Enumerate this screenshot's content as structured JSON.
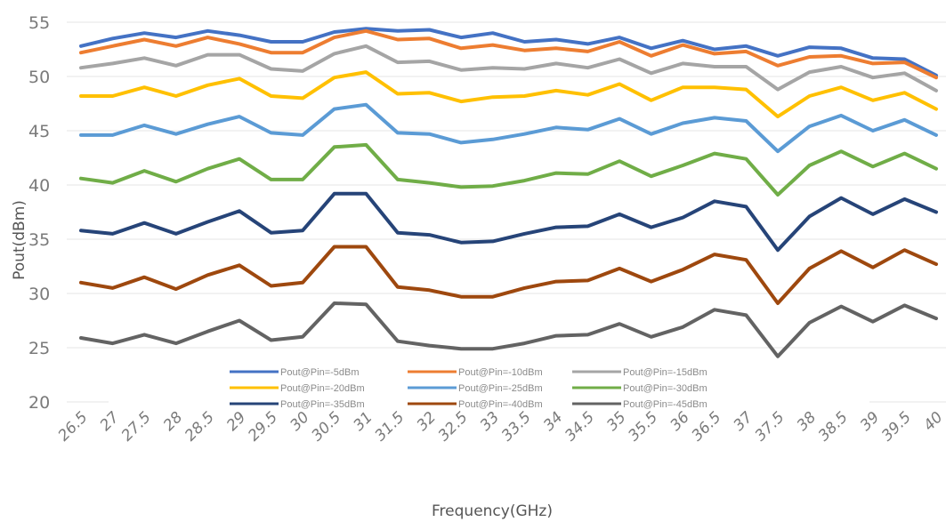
{
  "chart_data": {
    "type": "line",
    "title": "",
    "xlabel": "Frequency(GHz)",
    "ylabel": "Pout(dBm)",
    "ylim": [
      20,
      55
    ],
    "yticks": [
      20,
      25,
      30,
      35,
      40,
      45,
      50,
      55
    ],
    "grid": "horizontal",
    "legend_position": "bottom-center-inside",
    "categories": [
      "26.5",
      "27",
      "27.5",
      "28",
      "28.5",
      "29",
      "29.5",
      "30",
      "30.5",
      "31",
      "31.5",
      "32",
      "32.5",
      "33",
      "33.5",
      "34",
      "34.5",
      "35",
      "35.5",
      "36",
      "36.5",
      "37",
      "37.5",
      "38",
      "38.5",
      "39",
      "39.5",
      "40"
    ],
    "series": [
      {
        "name": "Pout@Pin=-5dBm",
        "color": "#4472c4",
        "values": [
          52.8,
          53.5,
          54.0,
          53.6,
          54.2,
          53.8,
          53.2,
          53.2,
          54.1,
          54.4,
          54.2,
          54.3,
          53.6,
          54.0,
          53.2,
          53.4,
          53.0,
          53.6,
          52.6,
          53.3,
          52.5,
          52.8,
          51.9,
          52.7,
          52.6,
          51.7,
          51.6,
          50.1
        ]
      },
      {
        "name": "Pout@Pin=-10dBm",
        "color": "#ed7d31",
        "values": [
          52.2,
          52.8,
          53.4,
          52.8,
          53.6,
          53.0,
          52.2,
          52.2,
          53.6,
          54.2,
          53.4,
          53.5,
          52.6,
          52.9,
          52.4,
          52.6,
          52.3,
          53.2,
          51.9,
          52.9,
          52.1,
          52.3,
          51.0,
          51.8,
          51.9,
          51.2,
          51.3,
          49.9
        ]
      },
      {
        "name": "Pout@Pin=-15dBm",
        "color": "#a5a5a5",
        "values": [
          50.8,
          51.2,
          51.7,
          51.0,
          52.0,
          52.0,
          50.7,
          50.5,
          52.1,
          52.8,
          51.3,
          51.4,
          50.6,
          50.8,
          50.7,
          51.2,
          50.8,
          51.6,
          50.3,
          51.2,
          50.9,
          50.9,
          48.8,
          50.4,
          50.9,
          49.9,
          50.3,
          48.7
        ]
      },
      {
        "name": "Pout@Pin=-20dBm",
        "color": "#ffc000",
        "values": [
          48.2,
          48.2,
          49.0,
          48.2,
          49.2,
          49.8,
          48.2,
          48.0,
          49.9,
          50.4,
          48.4,
          48.5,
          47.7,
          48.1,
          48.2,
          48.7,
          48.3,
          49.3,
          47.8,
          49.0,
          49.0,
          48.8,
          46.3,
          48.2,
          49.0,
          47.8,
          48.5,
          47.0
        ]
      },
      {
        "name": "Pout@Pin=-25dBm",
        "color": "#5b9bd5",
        "values": [
          44.6,
          44.6,
          45.5,
          44.7,
          45.6,
          46.3,
          44.8,
          44.6,
          47.0,
          47.4,
          44.8,
          44.7,
          43.9,
          44.2,
          44.7,
          45.3,
          45.1,
          46.1,
          44.7,
          45.7,
          46.2,
          45.9,
          43.1,
          45.4,
          46.4,
          45.0,
          46.0,
          44.6
        ]
      },
      {
        "name": "Pout@Pin=-30dBm",
        "color": "#70ad47",
        "values": [
          40.6,
          40.2,
          41.3,
          40.3,
          41.5,
          42.4,
          40.5,
          40.5,
          43.5,
          43.7,
          40.5,
          40.2,
          39.8,
          39.9,
          40.4,
          41.1,
          41.0,
          42.2,
          40.8,
          41.8,
          42.9,
          42.4,
          39.1,
          41.8,
          43.1,
          41.7,
          42.9,
          41.5
        ]
      },
      {
        "name": "Pout@Pin=-35dBm",
        "color": "#264478",
        "values": [
          35.8,
          35.5,
          36.5,
          35.5,
          36.6,
          37.6,
          35.6,
          35.8,
          39.2,
          39.2,
          35.6,
          35.4,
          34.7,
          34.8,
          35.5,
          36.1,
          36.2,
          37.3,
          36.1,
          37.0,
          38.5,
          38.0,
          34.0,
          37.1,
          38.8,
          37.3,
          38.7,
          37.5
        ]
      },
      {
        "name": "Pout@Pin=-40dBm",
        "color": "#9e480e",
        "values": [
          31.0,
          30.5,
          31.5,
          30.4,
          31.7,
          32.6,
          30.7,
          31.0,
          34.3,
          34.3,
          30.6,
          30.3,
          29.7,
          29.7,
          30.5,
          31.1,
          31.2,
          32.3,
          31.1,
          32.2,
          33.6,
          33.1,
          29.1,
          32.3,
          33.9,
          32.4,
          34.0,
          32.7
        ]
      },
      {
        "name": "Pout@Pin=-45dBm",
        "color": "#636363",
        "values": [
          25.9,
          25.4,
          26.2,
          25.4,
          26.5,
          27.5,
          25.7,
          26.0,
          29.1,
          29.0,
          25.6,
          25.2,
          24.9,
          24.9,
          25.4,
          26.1,
          26.2,
          27.2,
          26.0,
          26.9,
          28.5,
          28.0,
          24.2,
          27.3,
          28.8,
          27.4,
          28.9,
          27.7
        ]
      }
    ]
  }
}
